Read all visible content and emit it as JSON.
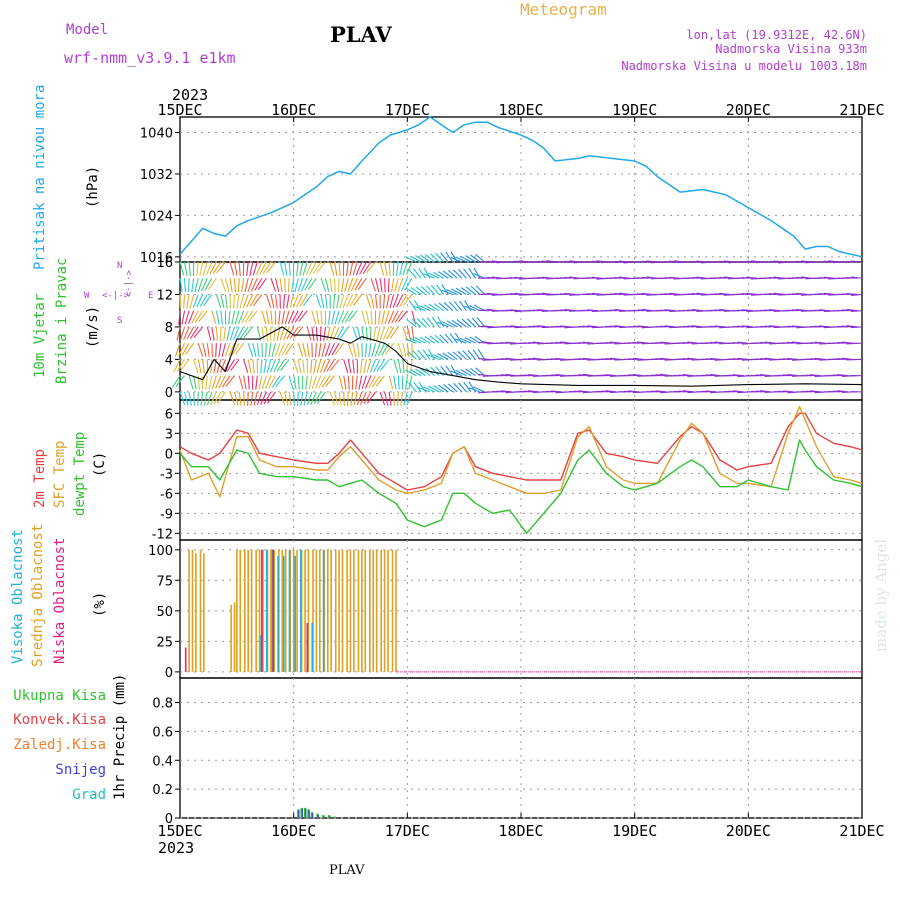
{
  "header": {
    "model_label": "Model",
    "model_name": "wrf-nmm_v3.9.1  e1km",
    "title": "PLAV",
    "product": "Meteogram",
    "location": "lon,lat (19.9312E, 42.6N)",
    "elevation": "Nadmorska Visina 933m",
    "model_elevation": "Nadmorska Visina u modelu 1003.18m",
    "year_top": "2023",
    "year_bottom": "2023",
    "footer_label": "PLAV",
    "watermark": "made by Angel"
  },
  "colors": {
    "pressure": "#20a8e8",
    "temp2m": "#e84040",
    "sfc_temp": "#e0a030",
    "dewpt": "#30c030",
    "high_cloud": "#20b0e0",
    "mid_cloud": "#e0a020",
    "low_cloud": "#e02080",
    "precip_total": "#30c030",
    "precip_conv": "#e84040",
    "precip_frz": "#f08030",
    "precip_snow": "#4040e0",
    "precip_hail": "#20c0c0",
    "axis_purple": "#b040d0"
  },
  "chart_data": [
    {
      "type": "line",
      "title": "",
      "ylabel_colored": "Pritisak na nivou mora",
      "ylabel_unit": "(hPa)",
      "yticks": [
        1016,
        1024,
        1032,
        1040
      ],
      "ylim": [
        1015,
        1043
      ],
      "x_ticks": [
        "15DEC",
        "16DEC",
        "17DEC",
        "18DEC",
        "19DEC",
        "20DEC",
        "21DEC"
      ],
      "x_days": [
        0,
        6
      ],
      "series": [
        {
          "x": [
            0,
            0.1,
            0.2,
            0.3,
            0.4,
            0.5,
            0.6,
            0.8,
            1.0,
            1.2,
            1.3,
            1.4,
            1.5,
            1.6,
            1.75,
            1.85,
            2.0,
            2.1,
            2.2,
            2.3,
            2.4,
            2.5,
            2.6,
            2.7,
            2.8,
            3.0,
            3.1,
            3.2,
            3.3,
            3.5,
            3.6,
            3.8,
            4.0,
            4.1,
            4.2,
            4.4,
            4.6,
            4.8,
            5.0,
            5.2,
            5.4,
            5.5,
            5.6,
            5.7,
            5.8,
            5.9,
            6.0
          ],
          "values": [
            1016.5,
            1019,
            1021.5,
            1020.5,
            1020,
            1022,
            1023,
            1024.5,
            1026.5,
            1029.5,
            1031.5,
            1032.5,
            1032,
            1034.5,
            1038,
            1039.5,
            1040.5,
            1041.5,
            1043,
            1041.5,
            1040,
            1041.5,
            1042,
            1042,
            1041,
            1039.5,
            1038.5,
            1037,
            1034.5,
            1035,
            1035.5,
            1035,
            1034.5,
            1033.5,
            1031.5,
            1028.5,
            1029,
            1028,
            1025.5,
            1023,
            1020,
            1017.5,
            1018,
            1018,
            1017,
            1016.5,
            1016
          ]
        }
      ]
    },
    {
      "type": "scatter",
      "title": "",
      "ylabel_colored_top": "10m Vjetar",
      "ylabel_colored_bottom": "Brzina i Pravac",
      "ylabel_unit": "(m/s)",
      "compass_n": "N",
      "compass_s": "S",
      "compass_w": "W",
      "compass_e": "E",
      "compass_arrow_v": "<-|->",
      "compass_arrow_h": "<-|->",
      "yticks": [
        0,
        4,
        8,
        12,
        16
      ],
      "ylim": [
        -1,
        16
      ],
      "series": [
        {
          "name": "",
          "x": [
            0,
            0.2,
            0.3,
            0.4,
            0.5,
            0.7,
            0.9,
            1.0,
            1.2,
            1.4,
            1.5,
            1.6,
            1.8,
            1.9,
            2.0,
            2.2,
            2.4,
            2.6,
            2.8,
            3.0,
            3.5,
            4.0,
            4.5,
            5.0,
            5.5,
            6.0
          ],
          "values": [
            2.5,
            1.5,
            4,
            2.5,
            6.5,
            6.5,
            8,
            7,
            7,
            6.5,
            6,
            6.8,
            6,
            5,
            3.5,
            2.5,
            2,
            1.5,
            1.2,
            1,
            0.8,
            0.8,
            0.7,
            0.9,
            1.0,
            0.9
          ]
        }
      ]
    },
    {
      "type": "line",
      "title": "",
      "ylabel_t2m": "2m Temp",
      "ylabel_sfc": "SFC Temp",
      "ylabel_dew": "dewpt Temp",
      "ylabel_unit": "(C)",
      "yticks": [
        -12,
        -9,
        -6,
        -3,
        0,
        3,
        6
      ],
      "ylim": [
        -13,
        8
      ],
      "x": [
        0,
        0.1,
        0.25,
        0.35,
        0.5,
        0.6,
        0.7,
        0.85,
        1.0,
        1.2,
        1.3,
        1.4,
        1.5,
        1.6,
        1.75,
        1.9,
        2.0,
        2.15,
        2.3,
        2.4,
        2.5,
        2.6,
        2.75,
        2.9,
        3.05,
        3.2,
        3.35,
        3.5,
        3.6,
        3.75,
        3.9,
        4.0,
        4.2,
        4.4,
        4.5,
        4.6,
        4.75,
        4.9,
        5.0,
        5.2,
        5.35,
        5.45,
        5.5,
        5.6,
        5.75,
        5.9,
        6.0
      ],
      "series": [
        {
          "name": "2m Temp",
          "values": [
            1,
            0,
            -1,
            0,
            3.5,
            3,
            0,
            -0.5,
            -1,
            -1.5,
            -1.5,
            0,
            2,
            0,
            -3,
            -4.5,
            -5.5,
            -5,
            -3.5,
            0,
            1,
            -2,
            -3,
            -3.5,
            -4,
            -4,
            -4,
            3,
            3.5,
            0,
            -0.5,
            -1,
            -1.5,
            2.5,
            4,
            3,
            -1,
            -2.5,
            -2,
            -1.5,
            4,
            6,
            6,
            3,
            1.5,
            1,
            0.5
          ]
        },
        {
          "name": "SFC Temp",
          "values": [
            0.5,
            -4,
            -3,
            -6.5,
            2.5,
            2.5,
            -1,
            -2,
            -2,
            -2.5,
            -2.5,
            -0.5,
            1,
            -1,
            -4,
            -5.5,
            -6,
            -5.5,
            -4.5,
            0,
            1,
            -3,
            -4,
            -5,
            -6,
            -6,
            -5.5,
            2.5,
            4,
            -2,
            -4,
            -4.5,
            -4.5,
            2,
            4.5,
            3,
            -3,
            -4.5,
            -4.5,
            -5,
            3,
            7,
            5,
            1,
            -3.5,
            -4,
            -4.5
          ]
        },
        {
          "name": "dewpt Temp",
          "values": [
            0,
            -2,
            -2,
            -4,
            0.5,
            0,
            -3,
            -3.5,
            -3.5,
            -4,
            -4,
            -5,
            -4.5,
            -4,
            -6,
            -7.5,
            -10,
            -11,
            -10,
            -6,
            -6,
            -7.5,
            -9,
            -8.5,
            -12,
            -9,
            -6,
            -1,
            0.5,
            -3,
            -5,
            -5.5,
            -4.5,
            -2,
            -1,
            -2,
            -5,
            -5,
            -4,
            -5,
            -5.5,
            2,
            0.5,
            -2,
            -4,
            -4.5,
            -5
          ]
        }
      ]
    },
    {
      "type": "bar",
      "title": "",
      "ylabel_high": "Visoka Oblacnost",
      "ylabel_mid": "Srednja Oblacnost",
      "ylabel_low": "Niska Oblacnost",
      "ylabel_unit": "(%)",
      "yticks": [
        0,
        25,
        50,
        75,
        100
      ],
      "ylim": [
        -5,
        108
      ],
      "series": [
        {
          "name": "Srednja Oblacnost",
          "x": [
            0.08,
            0.11,
            0.14,
            0.18,
            0.21,
            0.45,
            0.48,
            0.5,
            0.53,
            0.57,
            0.6,
            0.63,
            0.67,
            0.7,
            0.73,
            0.77,
            0.8,
            0.83,
            0.87,
            0.9,
            0.93,
            0.97,
            1.0,
            1.03,
            1.07,
            1.1,
            1.13,
            1.17,
            1.2,
            1.23,
            1.27,
            1.3,
            1.33,
            1.37,
            1.4,
            1.43,
            1.47,
            1.5,
            1.53,
            1.57,
            1.6,
            1.63,
            1.67,
            1.7,
            1.73,
            1.77,
            1.8,
            1.83,
            1.87,
            1.9
          ],
          "values": [
            100,
            100,
            97,
            100,
            97,
            55,
            57,
            100,
            100,
            100,
            100,
            100,
            100,
            100,
            100,
            100,
            100,
            100,
            100,
            100,
            100,
            100,
            100,
            100,
            100,
            100,
            100,
            100,
            100,
            100,
            100,
            100,
            100,
            100,
            100,
            100,
            100,
            100,
            100,
            100,
            100,
            100,
            100,
            100,
            100,
            100,
            100,
            100,
            100,
            100
          ]
        },
        {
          "name": "Visoka Oblacnost",
          "x": [
            0.7,
            0.75,
            0.8,
            0.85,
            0.9,
            0.95,
            1.0,
            1.05,
            1.15,
            1.25
          ],
          "values": [
            30,
            100,
            100,
            95,
            95,
            100,
            95,
            100,
            40,
            100
          ]
        },
        {
          "name": "Niska Oblacnost",
          "x": [
            0.05,
            0.72,
            0.82,
            1.12
          ],
          "values": [
            20,
            100,
            100,
            40
          ]
        }
      ]
    },
    {
      "type": "bar",
      "title": "",
      "ylabel_unit": "1hr Precip (mm)",
      "legend": [
        "Ukupna Kisa",
        "Konvek.Kisa",
        "Zaledj.Kisa",
        "Snijeg",
        "Grad"
      ],
      "yticks": [
        0,
        0.2,
        0.4,
        0.6,
        0.8
      ],
      "ylim": [
        0,
        0.97
      ],
      "series": [
        {
          "name": "Ukupna Kisa",
          "x": [
            1.03,
            1.06,
            1.09,
            1.12,
            1.15,
            1.2,
            1.25,
            1.3,
            1.35
          ],
          "values": [
            0.06,
            0.07,
            0.07,
            0.06,
            0.04,
            0.03,
            0.02,
            0.02,
            0.01
          ]
        }
      ]
    }
  ]
}
